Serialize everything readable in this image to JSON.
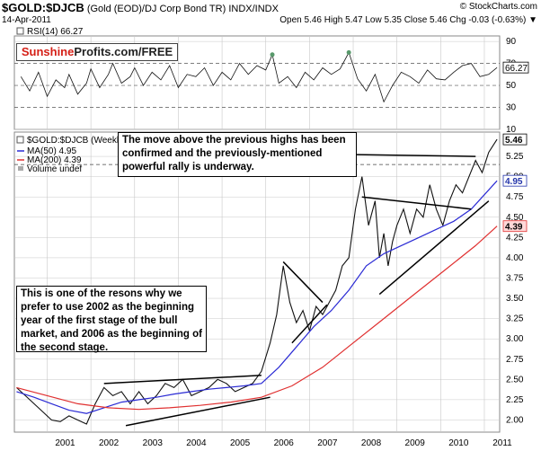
{
  "header": {
    "symbol": "$GOLD:$DJCB",
    "description": "(Gold (EOD)/DJ Corp Bond TR)",
    "exchange": "INDX/INDX",
    "date": "14-Apr-2011",
    "brand": "© StockCharts.com",
    "ohlc": "Open 5.46  High 5.47  Low 5.35  Close 5.46  Chg -0.03 (-0.63%) ▼"
  },
  "watermark": {
    "part1": "Sunshine",
    "part2": "Profits.com/FREE"
  },
  "annotations": {
    "top": "The move above the previous highs has been confirmed and the previously-mentioned powerful rally is underway.",
    "bottom": "This is one of the resons why we prefer to use 2002 as the beginning year of the first stage of the bull market, and 2006 as the beginning of the second stage."
  },
  "colors": {
    "rsi_line": "#111111",
    "rsi_fill": "#58996b",
    "price_line": "#111111",
    "ma50": "#2a2ad4",
    "ma200": "#e03030",
    "grid": "#c8c8c8",
    "label_highlight": "#2233aa"
  },
  "chart_data": [
    {
      "type": "line",
      "title": "RSI(14) 66.27",
      "y_ticks": [
        10,
        30,
        50,
        70,
        90
      ],
      "ylim": [
        10,
        95
      ],
      "dashed_lines": [
        30,
        50,
        70
      ],
      "last_value_label": "66.27",
      "series": [
        {
          "name": "RSI(14)",
          "x": [
            2000.4,
            2000.6,
            2000.8,
            2001.0,
            2001.2,
            2001.4,
            2001.5,
            2001.7,
            2001.9,
            2002.0,
            2002.2,
            2002.4,
            2002.5,
            2002.7,
            2002.9,
            2003.0,
            2003.2,
            2003.4,
            2003.6,
            2003.8,
            2004.0,
            2004.2,
            2004.4,
            2004.6,
            2004.8,
            2005.0,
            2005.2,
            2005.4,
            2005.6,
            2005.8,
            2006.0,
            2006.15,
            2006.3,
            2006.5,
            2006.7,
            2006.9,
            2007.1,
            2007.3,
            2007.5,
            2007.7,
            2007.9,
            2008.1,
            2008.3,
            2008.5,
            2008.7,
            2008.9,
            2009.1,
            2009.3,
            2009.5,
            2009.7,
            2009.9,
            2010.1,
            2010.3,
            2010.5,
            2010.7,
            2010.9,
            2011.1,
            2011.29
          ],
          "values": [
            58,
            45,
            62,
            40,
            55,
            48,
            60,
            42,
            52,
            65,
            48,
            60,
            70,
            52,
            58,
            66,
            50,
            62,
            55,
            68,
            48,
            60,
            58,
            66,
            50,
            62,
            55,
            70,
            60,
            68,
            64,
            78,
            52,
            58,
            48,
            62,
            55,
            66,
            60,
            65,
            80,
            56,
            45,
            60,
            35,
            50,
            62,
            58,
            52,
            64,
            56,
            55,
            62,
            68,
            70,
            58,
            60,
            66.27
          ]
        }
      ]
    },
    {
      "type": "line",
      "title": "$GOLD:$DJCB (Weekly) 5.46",
      "x_ticks": [
        "2001",
        "2002",
        "2003",
        "2004",
        "2005",
        "2006",
        "2007",
        "2008",
        "2009",
        "2010",
        "2011"
      ],
      "y_ticks": [
        2.0,
        2.25,
        2.5,
        2.75,
        3.0,
        3.25,
        3.5,
        3.75,
        4.0,
        4.25,
        4.5,
        4.75,
        5.0,
        5.25
      ],
      "ylim": [
        1.85,
        5.55
      ],
      "legend": [
        "$GOLD:$DJCB (Weekly) 5.46",
        "MA(50) 4.95",
        "MA(200) 4.39",
        "Volume undef"
      ],
      "last_value_labels": [
        "5.46",
        "4.95",
        "4.39"
      ],
      "dashed_line": 5.15,
      "series": [
        {
          "name": "$GOLD:$DJCB",
          "x": [
            2000.3,
            2000.5,
            2000.7,
            2000.9,
            2001.1,
            2001.3,
            2001.5,
            2001.7,
            2001.9,
            2002.1,
            2002.3,
            2002.5,
            2002.7,
            2002.9,
            2003.1,
            2003.3,
            2003.5,
            2003.7,
            2003.9,
            2004.1,
            2004.3,
            2004.5,
            2004.7,
            2004.9,
            2005.1,
            2005.3,
            2005.5,
            2005.7,
            2005.9,
            2006.1,
            2006.25,
            2006.4,
            2006.55,
            2006.7,
            2006.85,
            2007.0,
            2007.15,
            2007.3,
            2007.45,
            2007.6,
            2007.75,
            2007.9,
            2008.05,
            2008.2,
            2008.35,
            2008.5,
            2008.6,
            2008.7,
            2008.8,
            2008.9,
            2009.0,
            2009.15,
            2009.3,
            2009.45,
            2009.6,
            2009.75,
            2009.9,
            2010.05,
            2010.2,
            2010.35,
            2010.5,
            2010.65,
            2010.8,
            2010.95,
            2011.1,
            2011.29
          ],
          "values": [
            2.4,
            2.3,
            2.2,
            2.1,
            2.0,
            1.98,
            2.05,
            2.0,
            1.95,
            2.2,
            2.4,
            2.3,
            2.35,
            2.2,
            2.35,
            2.2,
            2.3,
            2.45,
            2.4,
            2.5,
            2.3,
            2.35,
            2.4,
            2.5,
            2.45,
            2.35,
            2.4,
            2.45,
            2.6,
            2.95,
            3.3,
            3.9,
            3.45,
            3.2,
            3.35,
            3.1,
            3.4,
            3.3,
            3.45,
            3.6,
            3.9,
            4.0,
            4.6,
            5.0,
            4.4,
            4.7,
            4.0,
            4.3,
            3.9,
            4.2,
            4.4,
            4.6,
            4.3,
            4.6,
            4.5,
            4.9,
            4.6,
            4.4,
            4.7,
            4.9,
            4.8,
            5.0,
            5.2,
            5.05,
            5.3,
            5.46
          ]
        },
        {
          "name": "MA(50)",
          "x": [
            2000.3,
            2000.7,
            2001.1,
            2001.5,
            2001.9,
            2002.3,
            2002.7,
            2003.1,
            2003.5,
            2003.9,
            2004.3,
            2004.7,
            2005.1,
            2005.5,
            2005.9,
            2006.3,
            2006.7,
            2007.1,
            2007.5,
            2007.9,
            2008.3,
            2008.7,
            2009.1,
            2009.5,
            2009.9,
            2010.3,
            2010.7,
            2011.29
          ],
          "values": [
            2.35,
            2.28,
            2.2,
            2.12,
            2.08,
            2.15,
            2.22,
            2.25,
            2.28,
            2.32,
            2.35,
            2.38,
            2.4,
            2.42,
            2.45,
            2.65,
            2.9,
            3.15,
            3.35,
            3.6,
            3.9,
            4.05,
            4.15,
            4.25,
            4.35,
            4.45,
            4.6,
            4.95
          ]
        },
        {
          "name": "MA(200)",
          "x": [
            2000.3,
            2001.0,
            2001.7,
            2002.4,
            2003.1,
            2003.8,
            2004.5,
            2005.2,
            2005.9,
            2006.6,
            2007.3,
            2008.0,
            2008.7,
            2009.4,
            2010.1,
            2010.8,
            2011.29
          ],
          "values": [
            2.4,
            2.3,
            2.2,
            2.15,
            2.13,
            2.15,
            2.18,
            2.22,
            2.28,
            2.42,
            2.65,
            2.95,
            3.25,
            3.55,
            3.85,
            4.15,
            4.39
          ]
        }
      ],
      "trendlines": [
        {
          "from": [
            2002.3,
            2.45
          ],
          "to": [
            2005.9,
            2.55
          ]
        },
        {
          "from": [
            2002.8,
            1.93
          ],
          "to": [
            2006.1,
            2.28
          ]
        },
        {
          "from": [
            2006.4,
            3.95
          ],
          "to": [
            2007.3,
            3.45
          ]
        },
        {
          "from": [
            2006.6,
            2.95
          ],
          "to": [
            2007.4,
            3.42
          ]
        },
        {
          "from": [
            2008.2,
            4.75
          ],
          "to": [
            2010.7,
            4.6
          ]
        },
        {
          "from": [
            2008.6,
            3.55
          ],
          "to": [
            2011.1,
            4.7
          ]
        },
        {
          "from": [
            2007.1,
            5.28
          ],
          "to": [
            2010.8,
            5.25
          ]
        }
      ]
    }
  ]
}
